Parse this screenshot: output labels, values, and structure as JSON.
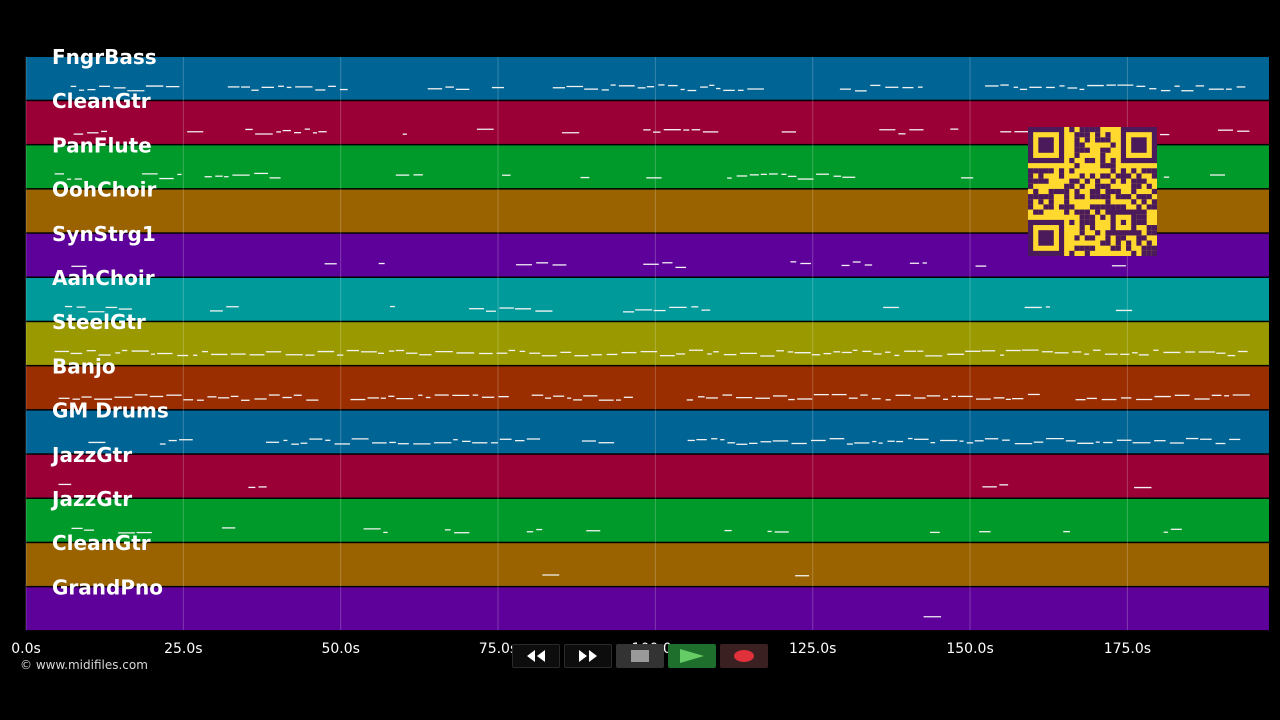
{
  "tracks": [
    {
      "name": "FngrBass",
      "color": "#006494"
    },
    {
      "name": "CleanGtr",
      "color": "#9a0036"
    },
    {
      "name": "PanFlute",
      "color": "#009a2a"
    },
    {
      "name": "OohChoir",
      "color": "#9a6300"
    },
    {
      "name": "SynStrg1",
      "color": "#5e009a"
    },
    {
      "name": "AahChoir",
      "color": "#009a9a"
    },
    {
      "name": "SteelGtr",
      "color": "#9a9a00"
    },
    {
      "name": "Banjo",
      "color": "#9a2e00"
    },
    {
      "name": "GM Drums",
      "color": "#006494"
    },
    {
      "name": "JazzGtr",
      "color": "#9a0036"
    },
    {
      "name": "JazzGtr",
      "color": "#009a2a"
    },
    {
      "name": "CleanGtr",
      "color": "#9a6300"
    },
    {
      "name": "GrandPno",
      "color": "#5e009a"
    }
  ],
  "time_axis": {
    "start_seconds": 0,
    "end_seconds": 197.5,
    "ticks": [
      {
        "value": 0,
        "label": "0.0s"
      },
      {
        "value": 25,
        "label": "25.0s"
      },
      {
        "value": 50,
        "label": "50.0s"
      },
      {
        "value": 75,
        "label": "75.0s"
      },
      {
        "value": 100,
        "label": "100.0s"
      },
      {
        "value": 125,
        "label": "125.0s"
      },
      {
        "value": 150,
        "label": "150.0s"
      },
      {
        "value": 175,
        "label": "175.0s"
      }
    ]
  },
  "copyright": "© www.midifiles.com",
  "transport": {
    "rewind_icon": "rewind-icon",
    "fast_forward_icon": "fast-forward-icon",
    "stop_icon": "stop-icon",
    "play_icon": "play-icon",
    "record_icon": "record-icon"
  },
  "colors": {
    "background": "#000000",
    "qr_background": "#ffd92e",
    "qr_foreground": "#4a1a5a"
  }
}
